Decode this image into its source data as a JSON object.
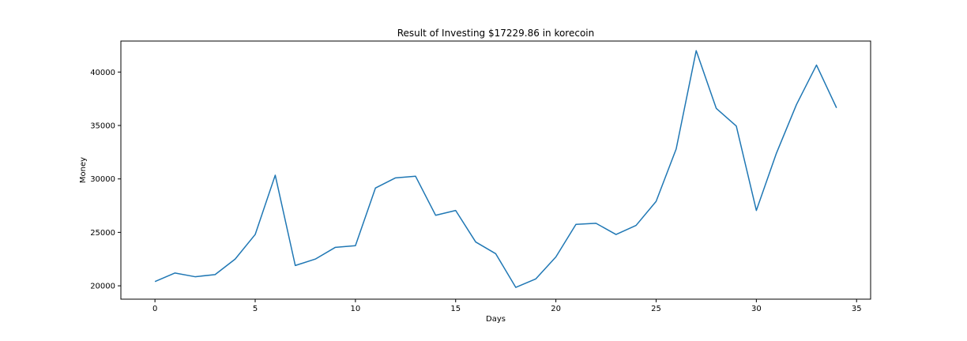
{
  "chart_data": {
    "type": "line",
    "title": "Result of Investing $17229.86 in korecoin",
    "xlabel": "Days",
    "ylabel": "Money",
    "xlim": [
      -1.7,
      35.7
    ],
    "ylim": [
      18750,
      42900
    ],
    "xticks": [
      0,
      5,
      10,
      15,
      20,
      25,
      30,
      35
    ],
    "yticks": [
      20000,
      25000,
      30000,
      35000,
      40000
    ],
    "grid": false,
    "line_color": "#1f77b4",
    "series": [
      {
        "x": [
          0,
          1,
          2,
          3,
          4,
          5,
          6,
          7,
          8,
          9,
          10,
          11,
          12,
          13,
          14,
          15,
          16,
          17,
          18,
          19,
          20,
          21,
          22,
          23,
          24,
          25,
          26,
          27,
          28,
          29,
          30,
          31,
          32,
          33,
          34
        ],
        "values": [
          20400,
          21200,
          20850,
          21050,
          22500,
          24800,
          30350,
          21900,
          22500,
          23600,
          23750,
          29150,
          30100,
          30250,
          26600,
          27050,
          24100,
          23000,
          19850,
          20650,
          22700,
          25750,
          25850,
          24800,
          25650,
          27900,
          32800,
          42000,
          36600,
          34950,
          27050,
          32400,
          36950,
          40650,
          36650
        ]
      }
    ]
  }
}
